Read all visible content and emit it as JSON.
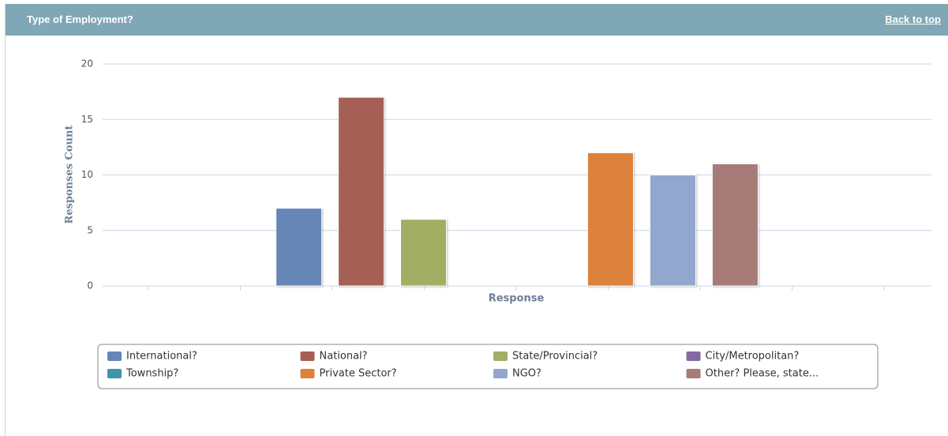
{
  "header": {
    "title": "Type of Employment?",
    "link": "Back to top"
  },
  "chart_data": {
    "type": "bar",
    "categories": [
      null
    ],
    "ylabel": "Responses Count",
    "xlabel": "Response",
    "ylim": [
      0,
      20
    ],
    "yticks": [
      0,
      5,
      10,
      15,
      20
    ],
    "grid": true,
    "legend": "bottom",
    "series": [
      {
        "name": "International?",
        "color": "#6686b6",
        "values": [
          7
        ]
      },
      {
        "name": "National?",
        "color": "#a65f55",
        "values": [
          17
        ]
      },
      {
        "name": "State/Provincial?",
        "color": "#a2ae63",
        "values": [
          6
        ]
      },
      {
        "name": "City/Metropolitan?",
        "color": "#8468a4",
        "values": [
          0
        ]
      },
      {
        "name": "Township?",
        "color": "#3d95a8",
        "values": [
          0
        ]
      },
      {
        "name": "Private Sector?",
        "color": "#dc823c",
        "values": [
          12
        ]
      },
      {
        "name": "NGO?",
        "color": "#91a7cd",
        "values": [
          10
        ]
      },
      {
        "name": "Other? Please, state...",
        "color": "#a67b78",
        "values": [
          11
        ]
      }
    ]
  }
}
